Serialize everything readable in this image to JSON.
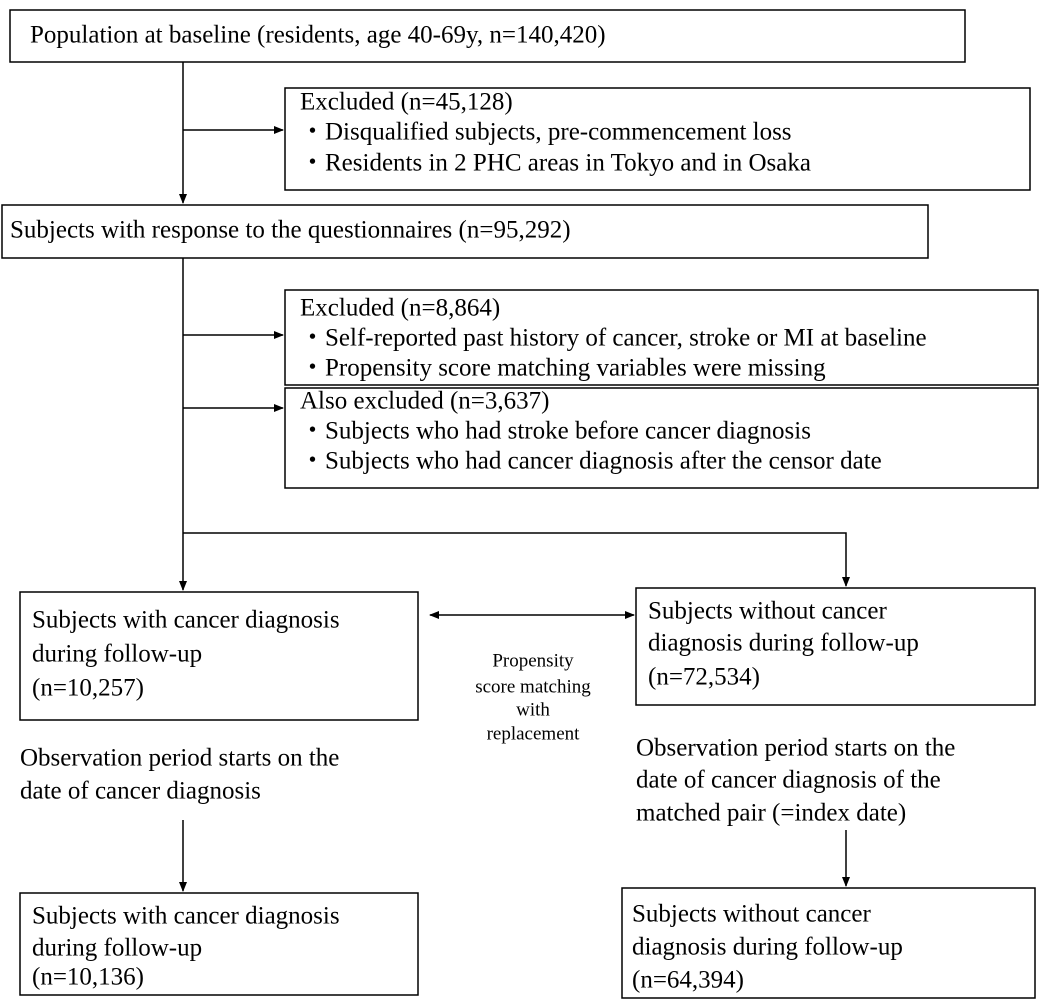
{
  "nodes": [
    {
      "lines": [
        "Population at baseline (residents, age 40-69y, n=140,420)"
      ]
    },
    {
      "lines": [
        "Excluded (n=45,128)",
        "・Disqualified subjects, pre-commencement loss",
        "・Residents in 2 PHC areas in Tokyo and in Osaka"
      ]
    },
    {
      "lines": [
        "Subjects with response to the questionnaires (n=95,292)"
      ]
    },
    {
      "lines": [
        "Excluded (n=8,864)",
        "・Self-reported past history of cancer, stroke or MI at baseline",
        "・Propensity score matching variables were missing"
      ]
    },
    {
      "lines": [
        "Also excluded (n=3,637)",
        "・Subjects who had stroke before cancer diagnosis",
        "・Subjects who had cancer diagnosis after the censor date"
      ]
    },
    {
      "lines": [
        "Subjects with cancer diagnosis",
        "during follow-up",
        "(n=10,257)"
      ]
    },
    {
      "lines": [
        "Subjects without cancer",
        "diagnosis during follow-up",
        "(n=72,534)"
      ]
    },
    {
      "lines": [
        "Subjects with cancer diagnosis",
        "during follow-up",
        "(n=10,136)"
      ]
    },
    {
      "lines": [
        "Subjects without cancer",
        "diagnosis during follow-up",
        "(n=64,394)"
      ]
    }
  ],
  "notes": {
    "matching": [
      "Propensity",
      "score matching",
      "with",
      "replacement"
    ],
    "left_observation": [
      "Observation period starts on the",
      "date of cancer diagnosis"
    ],
    "right_observation": [
      "Observation period starts on the",
      "date of cancer diagnosis of the",
      "matched pair (=index date)"
    ]
  }
}
